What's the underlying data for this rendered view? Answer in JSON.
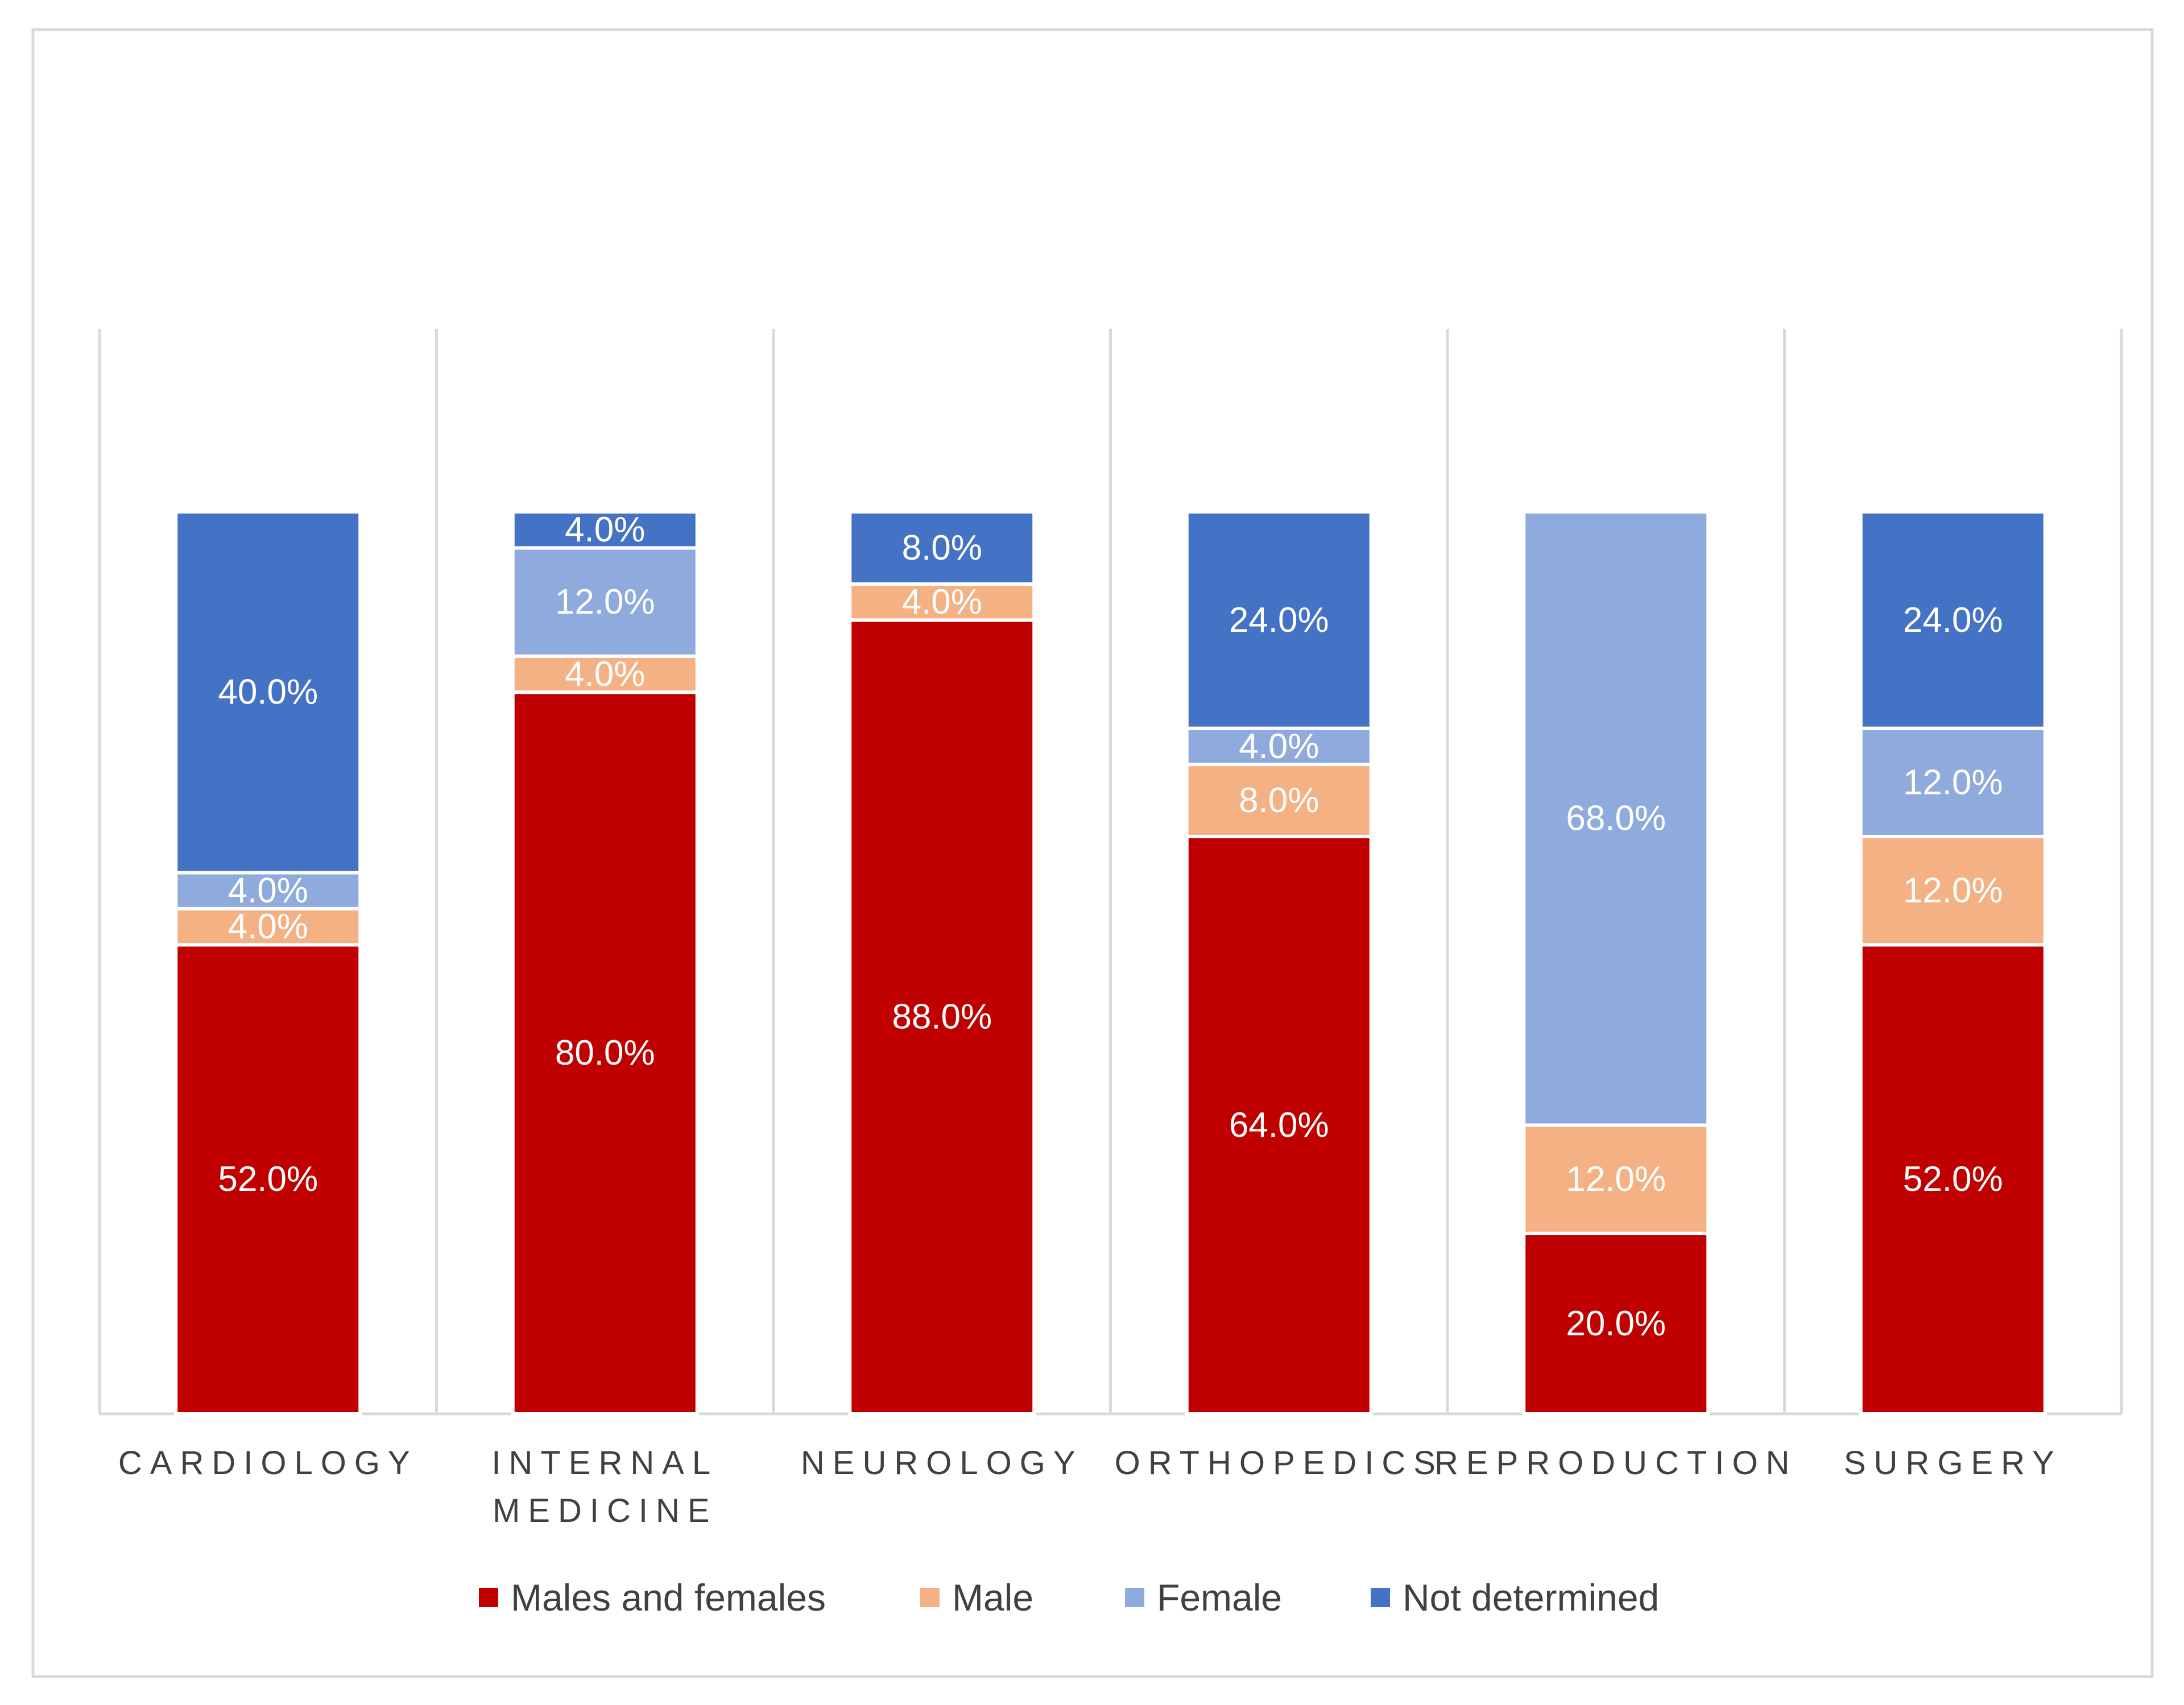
{
  "chart_data": {
    "type": "bar",
    "stacked": true,
    "title": "",
    "xlabel": "",
    "ylabel": "",
    "ylim": [
      0,
      100
    ],
    "grid": "vertical separators",
    "legend_position": "bottom",
    "categories": [
      [
        "CARDIOLOGY"
      ],
      [
        "INTERNAL",
        "MEDICINE"
      ],
      [
        "NEUROLOGY"
      ],
      [
        "ORTHOPEDICS"
      ],
      [
        "REPRODUCTION"
      ],
      [
        "SURGERY"
      ]
    ],
    "series": [
      {
        "name": "Males and females",
        "color": "#c00000",
        "values": [
          52.0,
          80.0,
          88.0,
          64.0,
          20.0,
          52.0
        ],
        "labels": [
          "52.0%",
          "80.0%",
          "88.0%",
          "64.0%",
          "20.0%",
          "52.0%"
        ]
      },
      {
        "name": "Male",
        "color": "#f4b183",
        "values": [
          4.0,
          4.0,
          4.0,
          8.0,
          12.0,
          12.0
        ],
        "labels": [
          "4.0%",
          "4.0%",
          "4.0%",
          "8.0%",
          "12.0%",
          "12.0%"
        ]
      },
      {
        "name": "Female",
        "color": "#8faadc",
        "values": [
          4.0,
          12.0,
          0.0,
          4.0,
          68.0,
          12.0
        ],
        "labels": [
          "4.0%",
          "12.0%",
          "",
          "4.0%",
          "68.0%",
          "12.0%"
        ]
      },
      {
        "name": "Not determined",
        "color": "#4472c4",
        "values": [
          40.0,
          4.0,
          8.0,
          24.0,
          0.0,
          24.0
        ],
        "labels": [
          "40.0%",
          "4.0%",
          "8.0%",
          "24.0%",
          "",
          "24.0%"
        ]
      }
    ]
  },
  "colors": {
    "frame": "#d9d9d9",
    "gridline": "#d9d9d9",
    "axis_text": "#404040",
    "segment_text": "#ffffff"
  }
}
